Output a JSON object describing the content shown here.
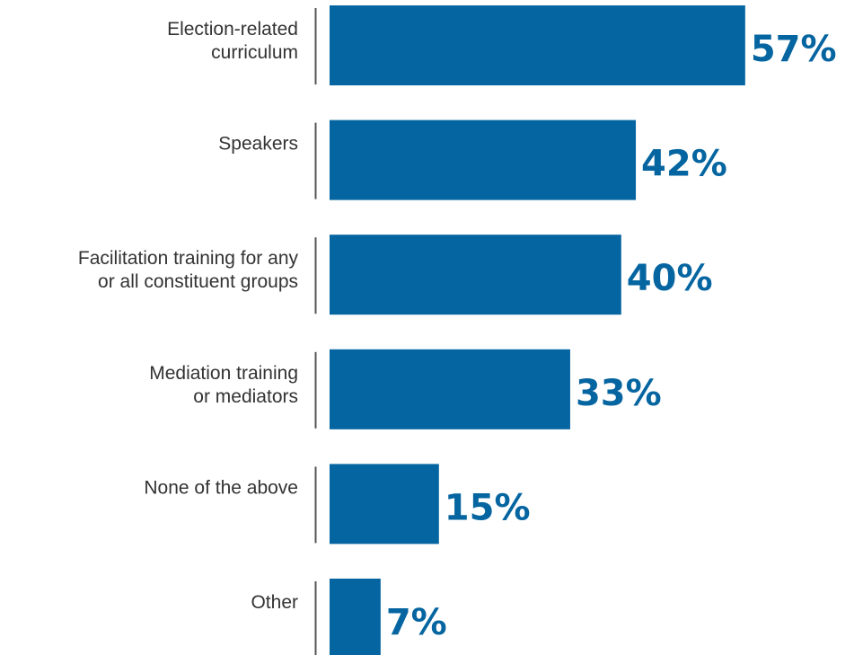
{
  "chart_data": {
    "type": "bar",
    "orientation": "horizontal",
    "categories": [
      [
        "Election-related",
        "curriculum"
      ],
      [
        "Speakers"
      ],
      [
        "Facilitation training for any",
        "or all constituent groups"
      ],
      [
        "Mediation training",
        "or mediators"
      ],
      [
        "None of the above"
      ],
      [
        "Other"
      ]
    ],
    "values": [
      57,
      42,
      40,
      33,
      15,
      7
    ],
    "value_labels": [
      "57%",
      "42%",
      "40%",
      "33%",
      "15%",
      "7%"
    ],
    "title": "",
    "xlabel": "",
    "ylabel": "",
    "xlim": [
      0,
      100
    ],
    "grid": false,
    "legend": "none",
    "colors": {
      "bar": "#0565a0",
      "value_label": "#0565a0",
      "divider": "#555555",
      "category_label": "#333333"
    }
  }
}
